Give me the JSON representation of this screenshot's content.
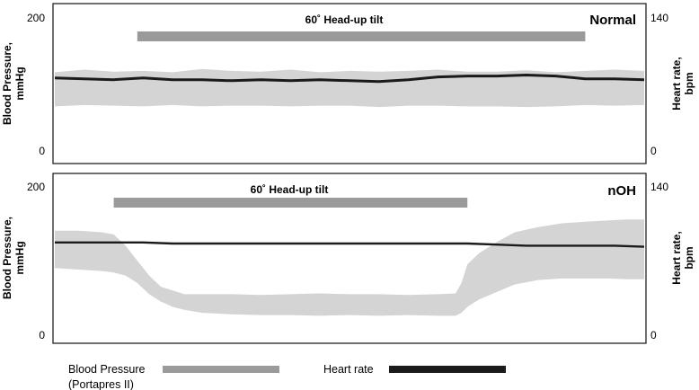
{
  "chart_data": [
    {
      "type": "area",
      "panel_label": "Normal",
      "tilt_label": "60˚ Head-up tilt",
      "ylabel_left": [
        "Blood Pressure,",
        "mmHg"
      ],
      "ylabel_right": [
        "Heart rate,",
        "bpm"
      ],
      "yticks_left": [
        "200",
        "0"
      ],
      "yticks_right": [
        "140",
        "0"
      ],
      "ylim_left": [
        0,
        200
      ],
      "ylim_right": [
        0,
        140
      ],
      "xlim": [
        0,
        100
      ],
      "tilt_bar": [
        14,
        90
      ],
      "series": [
        {
          "name": "Blood Pressure",
          "kind": "band",
          "x": [
            0,
            5,
            10,
            15,
            20,
            25,
            30,
            35,
            40,
            45,
            50,
            55,
            60,
            65,
            70,
            75,
            80,
            85,
            90,
            95,
            100
          ],
          "low": [
            68,
            70,
            69,
            68,
            70,
            68,
            69,
            69,
            68,
            69,
            69,
            67,
            69,
            69,
            68,
            68,
            67,
            68,
            70,
            69,
            70
          ],
          "high": [
            120,
            124,
            121,
            122,
            120,
            125,
            122,
            121,
            124,
            120,
            122,
            121,
            122,
            124,
            121,
            121,
            123,
            120,
            122,
            124,
            122
          ]
        },
        {
          "name": "Heart rate",
          "kind": "line",
          "x": [
            0,
            5,
            10,
            15,
            20,
            25,
            30,
            35,
            40,
            45,
            50,
            55,
            60,
            65,
            70,
            75,
            80,
            85,
            90,
            95,
            100
          ],
          "values": [
            78,
            77,
            76,
            78,
            76,
            76,
            75,
            76,
            75,
            76,
            75,
            74,
            76,
            79,
            80,
            80,
            81,
            80,
            77,
            77,
            76
          ]
        }
      ]
    },
    {
      "type": "area",
      "panel_label": "nOH",
      "tilt_label": "60˚ Head-up tilt",
      "ylabel_left": [
        "Blood Pressure,",
        "mmHg"
      ],
      "ylabel_right": [
        "Heart rate,",
        "bpm"
      ],
      "yticks_left": [
        "200",
        "0"
      ],
      "yticks_right": [
        "140",
        "0"
      ],
      "ylim_left": [
        0,
        200
      ],
      "ylim_right": [
        0,
        140
      ],
      "xlim": [
        0,
        100
      ],
      "tilt_bar": [
        10,
        70
      ],
      "series": [
        {
          "name": "Blood Pressure",
          "kind": "band",
          "x": [
            0,
            4,
            8,
            10,
            12,
            14,
            16,
            18,
            20,
            22,
            25,
            30,
            35,
            40,
            45,
            50,
            55,
            60,
            65,
            68,
            69,
            70,
            72,
            75,
            78,
            82,
            86,
            90,
            94,
            97,
            100
          ],
          "low": [
            90,
            88,
            86,
            84,
            80,
            70,
            55,
            45,
            38,
            34,
            30,
            28,
            27,
            27,
            26,
            27,
            26,
            27,
            26,
            26,
            30,
            38,
            48,
            58,
            68,
            74,
            76,
            76,
            76,
            75,
            75
          ],
          "high": [
            140,
            140,
            138,
            135,
            120,
            100,
            80,
            65,
            60,
            55,
            55,
            55,
            54,
            55,
            56,
            55,
            55,
            54,
            55,
            56,
            70,
            95,
            110,
            125,
            138,
            145,
            150,
            152,
            154,
            155,
            155
          ]
        },
        {
          "name": "Heart rate",
          "kind": "line",
          "x": [
            0,
            5,
            10,
            15,
            20,
            25,
            30,
            35,
            40,
            45,
            50,
            55,
            60,
            65,
            70,
            75,
            80,
            85,
            90,
            95,
            100
          ],
          "values": [
            87,
            87,
            87,
            87,
            86,
            86,
            86,
            86,
            86,
            86,
            86,
            86,
            86,
            86,
            86,
            85,
            84,
            84,
            84,
            84,
            83
          ]
        }
      ]
    }
  ],
  "legend": {
    "bp_label": [
      "Blood Pressure",
      "(Portapres II)"
    ],
    "hr_label": "Heart rate",
    "bp_color": "#9a9a9a",
    "hr_color": "#1a1a1a"
  },
  "colors": {
    "band": "#d4d4d4",
    "tilt_bar": "#9a9a9a",
    "hr_line": "#1a1a1a",
    "frame": "#222222"
  }
}
